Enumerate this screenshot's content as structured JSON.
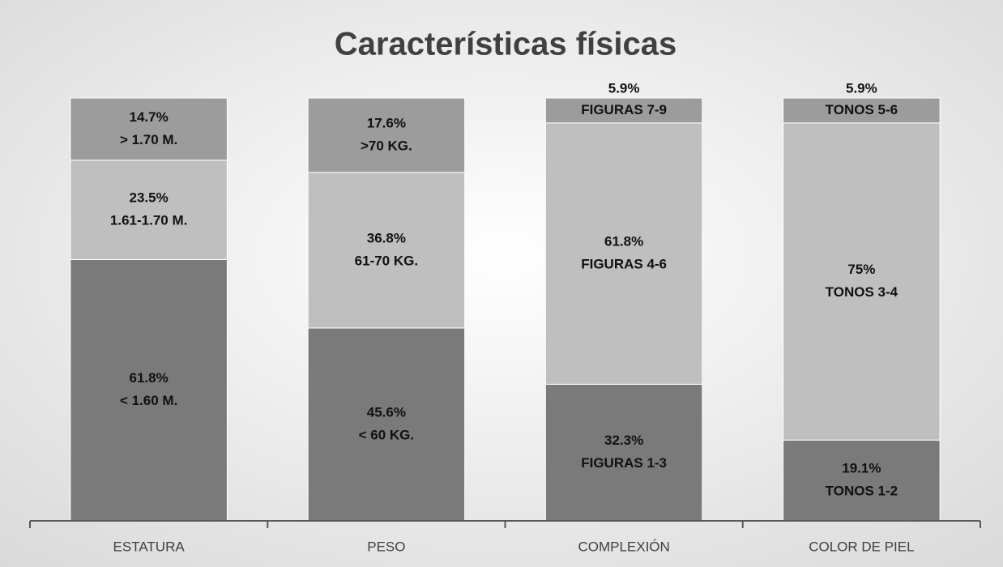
{
  "chart_data": {
    "type": "stacked_bar",
    "title": "Características físicas",
    "categories": [
      "ESTATURA",
      "PESO",
      "COMPLEXIÓN",
      "COLOR DE PIEL"
    ],
    "ylim": [
      0,
      100
    ],
    "series": [
      {
        "color": "#7a7a7a",
        "values": [
          61.8,
          45.6,
          32.3,
          19.1
        ],
        "value_labels": [
          "61.8%",
          "45.6%",
          "32.3%",
          "19.1%"
        ],
        "segment_labels": [
          "< 1.60 M.",
          "< 60 KG.",
          "FIGURAS 1-3",
          "TONOS 1-2"
        ]
      },
      {
        "color": "#bfbfbf",
        "values": [
          23.5,
          36.8,
          61.8,
          75
        ],
        "value_labels": [
          "23.5%",
          "36.8%",
          "61.8%",
          "75%"
        ],
        "segment_labels": [
          "1.61-1.70 M.",
          "61-70 KG.",
          "FIGURAS 4-6",
          "TONOS 3-4"
        ]
      },
      {
        "color": "#9c9c9c",
        "values": [
          14.7,
          17.6,
          5.9,
          5.9
        ],
        "value_labels": [
          "14.7%",
          "17.6%",
          "5.9%",
          "5.9%"
        ],
        "segment_labels": [
          "> 1.70 M.",
          ">70 KG.",
          "FIGURAS 7-9",
          "TONOS 5-6"
        ]
      }
    ]
  }
}
